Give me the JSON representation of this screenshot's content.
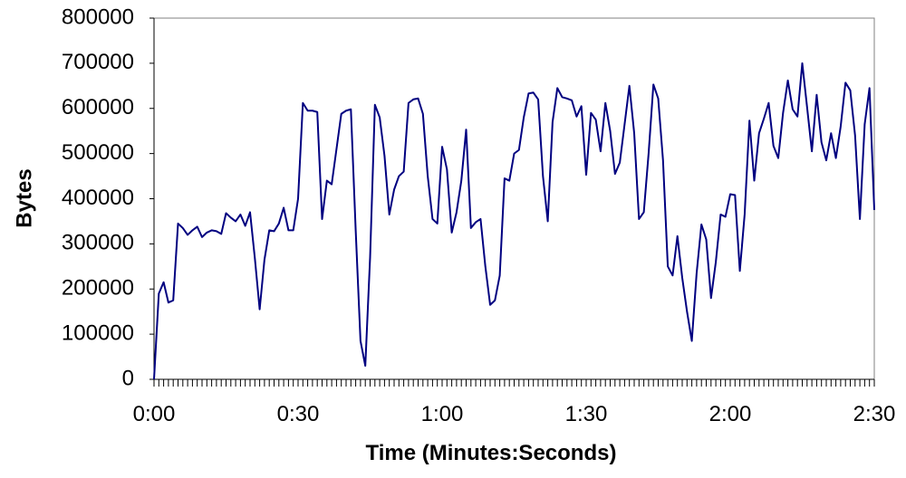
{
  "chart_data": {
    "type": "line",
    "title": "",
    "xlabel": "Time (Minutes:Seconds)",
    "ylabel": "Bytes",
    "xlim": [
      0,
      150
    ],
    "ylim": [
      0,
      800000
    ],
    "x_tick_values": [
      0,
      30,
      60,
      90,
      120,
      150
    ],
    "x_tick_labels": [
      "0:00",
      "0:30",
      "1:00",
      "1:30",
      "2:00",
      "2:30"
    ],
    "y_tick_values": [
      0,
      100000,
      200000,
      300000,
      400000,
      500000,
      600000,
      700000,
      800000
    ],
    "y_tick_labels": [
      "0",
      "100000",
      "200000",
      "300000",
      "400000",
      "500000",
      "600000",
      "700000",
      "800000"
    ],
    "grid": false,
    "legend": "none",
    "line_color": "#000080",
    "series": [
      {
        "x": [
          0,
          1,
          2,
          3,
          4,
          5,
          6,
          7,
          8,
          9,
          10,
          11,
          12,
          13,
          14,
          15,
          16,
          17,
          18,
          19,
          20,
          21,
          22,
          23,
          24,
          25,
          26,
          27,
          28,
          29,
          30,
          31,
          32,
          33,
          34,
          35,
          36,
          37,
          38,
          39,
          40,
          41,
          42,
          43,
          44,
          45,
          46,
          47,
          48,
          49,
          50,
          51,
          52,
          53,
          54,
          55,
          56,
          57,
          58,
          59,
          60,
          61,
          62,
          63,
          64,
          65,
          66,
          67,
          68,
          69,
          70,
          71,
          72,
          73,
          74,
          75,
          76,
          77,
          78,
          79,
          80,
          81,
          82,
          83,
          84,
          85,
          86,
          87,
          88,
          89,
          90,
          91,
          92,
          93,
          94,
          95,
          96,
          97,
          98,
          99,
          100,
          101,
          102,
          103,
          104,
          105,
          106,
          107,
          108,
          109,
          110,
          111,
          112,
          113,
          114,
          115,
          116,
          117,
          118,
          119,
          120,
          121,
          122,
          123,
          124,
          125,
          126,
          127,
          128,
          129,
          130,
          131,
          132,
          133,
          134,
          135,
          136,
          137,
          138,
          139,
          140,
          141,
          142,
          143,
          144,
          145,
          146,
          147,
          148,
          149,
          150
        ],
        "values": [
          0,
          190000,
          215000,
          170000,
          175000,
          345000,
          335000,
          320000,
          330000,
          338000,
          315000,
          325000,
          330000,
          328000,
          322000,
          368000,
          358000,
          350000,
          365000,
          340000,
          370000,
          268000,
          155000,
          265000,
          330000,
          328000,
          345000,
          380000,
          330000,
          330000,
          400000,
          612000,
          595000,
          595000,
          592000,
          355000,
          440000,
          432000,
          510000,
          588000,
          595000,
          598000,
          330000,
          85000,
          30000,
          270000,
          608000,
          580000,
          495000,
          365000,
          420000,
          450000,
          460000,
          612000,
          620000,
          622000,
          588000,
          450000,
          355000,
          345000,
          515000,
          465000,
          325000,
          370000,
          440000,
          553000,
          335000,
          348000,
          355000,
          250000,
          165000,
          175000,
          230000,
          445000,
          440000,
          500000,
          508000,
          580000,
          633000,
          635000,
          620000,
          450000,
          350000,
          570000,
          645000,
          625000,
          622000,
          618000,
          582000,
          605000,
          453000,
          590000,
          575000,
          505000,
          612000,
          550000,
          455000,
          480000,
          565000,
          650000,
          545000,
          355000,
          370000,
          500000,
          653000,
          622000,
          485000,
          250000,
          230000,
          317000,
          225000,
          150000,
          85000,
          235000,
          343000,
          310000,
          180000,
          260000,
          365000,
          360000,
          410000,
          408000,
          240000,
          365000,
          573000,
          440000,
          545000,
          577000,
          612000,
          517000,
          490000,
          590000,
          662000,
          598000,
          582000,
          700000,
          603000,
          505000,
          630000,
          525000,
          485000,
          545000,
          490000,
          560000,
          657000,
          640000,
          540000,
          355000,
          565000,
          645000,
          375000
        ]
      }
    ]
  }
}
